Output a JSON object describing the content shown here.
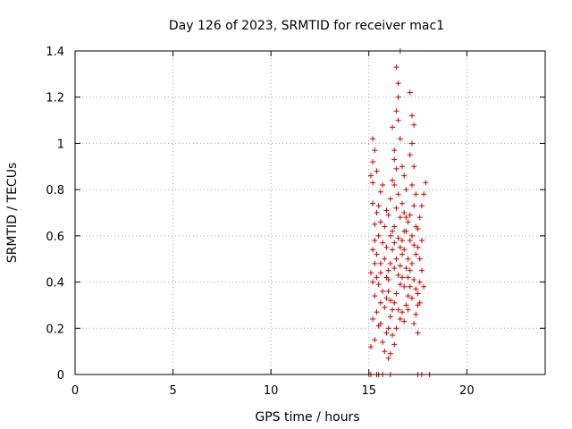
{
  "chart_data": {
    "type": "scatter",
    "title": "Day 126 of 2023, SRMTID for receiver mac1",
    "xlabel": "GPS time / hours",
    "ylabel": "SRMTID / TECUs",
    "xlim": [
      0,
      24
    ],
    "ylim": [
      0,
      1.4
    ],
    "xticks": [
      0,
      5,
      10,
      15,
      20
    ],
    "xtick_labels": [
      "0",
      "5",
      "10",
      "15",
      "20"
    ],
    "yticks": [
      0,
      0.2,
      0.4,
      0.6,
      0.8,
      1,
      1.2,
      1.4
    ],
    "ytick_labels": [
      "0",
      "0.2",
      "0.4",
      "0.6",
      "0.8",
      "1",
      "1.2",
      "1.4"
    ],
    "grid": true,
    "marker": "plus",
    "series_color": "#cc0000",
    "series": [
      {
        "points": [
          [
            15.0,
            0.0
          ],
          [
            15.1,
            0.0
          ],
          [
            15.4,
            0.0
          ],
          [
            15.5,
            0.0
          ],
          [
            15.7,
            0.0
          ],
          [
            16.1,
            0.0
          ],
          [
            17.5,
            0.0
          ],
          [
            17.7,
            0.0
          ],
          [
            18.1,
            0.0
          ],
          [
            15.2,
            1.02
          ],
          [
            15.3,
            0.97
          ],
          [
            15.2,
            0.92
          ],
          [
            15.1,
            0.86
          ],
          [
            15.2,
            0.83
          ],
          [
            15.4,
            0.88
          ],
          [
            15.6,
            0.79
          ],
          [
            15.2,
            0.74
          ],
          [
            15.4,
            0.7
          ],
          [
            15.3,
            0.65
          ],
          [
            15.5,
            0.6
          ],
          [
            15.2,
            0.54
          ],
          [
            15.3,
            0.48
          ],
          [
            15.1,
            0.44
          ],
          [
            15.4,
            0.42
          ],
          [
            15.5,
            0.39
          ],
          [
            15.3,
            0.34
          ],
          [
            15.6,
            0.31
          ],
          [
            15.4,
            0.27
          ],
          [
            15.2,
            0.24
          ],
          [
            15.5,
            0.21
          ],
          [
            15.3,
            0.15
          ],
          [
            15.1,
            0.12
          ],
          [
            15.6,
            0.44
          ],
          [
            15.7,
            0.36
          ],
          [
            15.8,
            0.29
          ],
          [
            15.6,
            0.22
          ],
          [
            15.9,
            0.18
          ],
          [
            15.7,
            0.14
          ],
          [
            15.8,
            0.1
          ],
          [
            16.0,
            0.07
          ],
          [
            16.1,
            0.25
          ],
          [
            15.9,
            0.33
          ],
          [
            16.0,
            0.41
          ],
          [
            16.1,
            0.48
          ],
          [
            15.9,
            0.55
          ],
          [
            16.2,
            0.62
          ],
          [
            16.0,
            0.69
          ],
          [
            16.1,
            0.76
          ],
          [
            16.2,
            0.84
          ],
          [
            16.3,
            0.93
          ],
          [
            16.2,
            1.07
          ],
          [
            16.4,
            1.14
          ],
          [
            16.5,
            1.2
          ],
          [
            16.5,
            1.26
          ],
          [
            16.6,
            1.4
          ],
          [
            16.4,
            1.33
          ],
          [
            16.5,
            1.1
          ],
          [
            16.6,
            1.02
          ],
          [
            16.3,
            0.97
          ],
          [
            16.4,
            0.89
          ],
          [
            16.3,
            0.82
          ],
          [
            16.5,
            0.78
          ],
          [
            16.4,
            0.72
          ],
          [
            16.6,
            0.68
          ],
          [
            16.3,
            0.64
          ],
          [
            16.5,
            0.59
          ],
          [
            16.6,
            0.55
          ],
          [
            16.4,
            0.5
          ],
          [
            16.3,
            0.46
          ],
          [
            16.5,
            0.43
          ],
          [
            16.6,
            0.39
          ],
          [
            16.4,
            0.35
          ],
          [
            16.3,
            0.31
          ],
          [
            16.5,
            0.28
          ],
          [
            16.6,
            0.24
          ],
          [
            16.4,
            0.2
          ],
          [
            16.2,
            0.17
          ],
          [
            16.3,
            0.13
          ],
          [
            16.1,
            0.09
          ],
          [
            16.0,
            0.2
          ],
          [
            16.7,
            0.9
          ],
          [
            16.8,
            0.86
          ],
          [
            16.9,
            0.8
          ],
          [
            16.7,
            0.74
          ],
          [
            16.8,
            0.7
          ],
          [
            17.0,
            0.66
          ],
          [
            16.9,
            0.62
          ],
          [
            16.7,
            0.58
          ],
          [
            16.8,
            0.54
          ],
          [
            17.0,
            0.5
          ],
          [
            16.9,
            0.46
          ],
          [
            16.7,
            0.42
          ],
          [
            16.8,
            0.38
          ],
          [
            17.0,
            0.34
          ],
          [
            16.9,
            0.3
          ],
          [
            16.7,
            0.27
          ],
          [
            16.8,
            0.23
          ],
          [
            17.1,
            1.22
          ],
          [
            17.2,
            1.12
          ],
          [
            17.3,
            1.08
          ],
          [
            17.2,
            1.0
          ],
          [
            17.1,
            0.95
          ],
          [
            17.3,
            0.9
          ],
          [
            17.2,
            0.82
          ],
          [
            17.4,
            0.78
          ],
          [
            17.3,
            0.73
          ],
          [
            17.1,
            0.69
          ],
          [
            17.4,
            0.64
          ],
          [
            17.2,
            0.6
          ],
          [
            17.3,
            0.56
          ],
          [
            17.4,
            0.52
          ],
          [
            17.2,
            0.48
          ],
          [
            17.1,
            0.45
          ],
          [
            17.3,
            0.41
          ],
          [
            17.4,
            0.37
          ],
          [
            17.2,
            0.33
          ],
          [
            17.5,
            0.3
          ],
          [
            17.4,
            0.26
          ],
          [
            17.3,
            0.22
          ],
          [
            17.5,
            0.18
          ],
          [
            17.6,
            0.4
          ],
          [
            17.5,
            0.35
          ],
          [
            17.6,
            0.31
          ],
          [
            17.7,
            0.58
          ],
          [
            17.5,
            0.63
          ],
          [
            17.6,
            0.68
          ],
          [
            17.7,
            0.73
          ],
          [
            17.8,
            0.78
          ],
          [
            17.9,
            0.83
          ],
          [
            17.8,
            0.38
          ],
          [
            15.9,
            0.42
          ],
          [
            16.0,
            0.36
          ],
          [
            16.1,
            0.32
          ],
          [
            16.2,
            0.28
          ],
          [
            15.8,
            0.5
          ],
          [
            15.7,
            0.57
          ],
          [
            15.8,
            0.64
          ],
          [
            15.9,
            0.71
          ],
          [
            16.6,
            0.47
          ],
          [
            16.7,
            0.52
          ],
          [
            16.8,
            0.62
          ],
          [
            16.9,
            0.68
          ],
          [
            17.0,
            0.42
          ],
          [
            17.1,
            0.38
          ],
          [
            17.0,
            0.28
          ],
          [
            17.1,
            0.58
          ],
          [
            17.6,
            0.5
          ],
          [
            17.7,
            0.45
          ],
          [
            17.5,
            0.55
          ],
          [
            16.2,
            0.54
          ],
          [
            16.3,
            0.57
          ],
          [
            16.1,
            0.6
          ],
          [
            15.6,
            0.66
          ],
          [
            15.5,
            0.73
          ],
          [
            15.7,
            0.82
          ],
          [
            15.3,
            0.58
          ],
          [
            15.4,
            0.52
          ],
          [
            15.2,
            0.4
          ],
          [
            15.6,
            0.48
          ],
          [
            16.0,
            0.45
          ]
        ]
      }
    ]
  }
}
